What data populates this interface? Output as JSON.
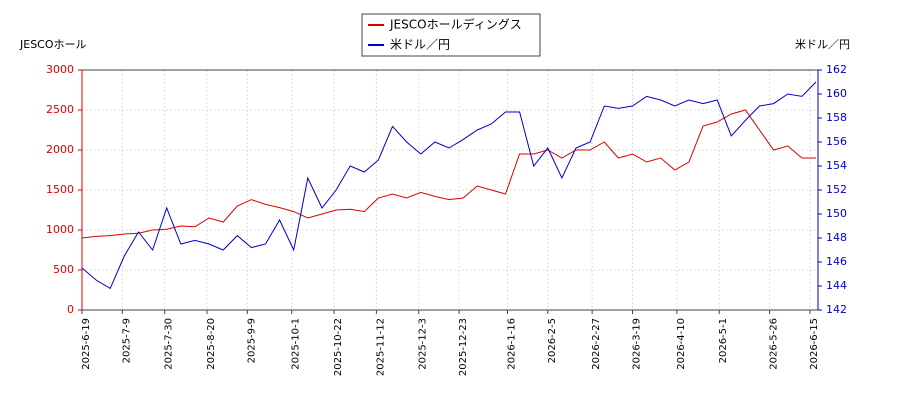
{
  "chart_data": {
    "type": "line",
    "y_label": "JESCOホール",
    "y2_label": "米ドル／円",
    "x": [
      "2025-6-19",
      "2025-6-26",
      "2025-7-3",
      "2025-7-10",
      "2025-7-17",
      "2025-7-24",
      "2025-7-31",
      "2025-8-7",
      "2025-8-14",
      "2025-8-21",
      "2025-8-28",
      "2025-9-4",
      "2025-9-11",
      "2025-9-18",
      "2025-9-25",
      "2025-10-2",
      "2025-10-9",
      "2025-10-16",
      "2025-10-23",
      "2025-10-30",
      "2025-11-6",
      "2025-11-13",
      "2025-11-20",
      "2025-11-27",
      "2025-12-4",
      "2025-12-11",
      "2025-12-18",
      "2025-12-25",
      "2026-1-1",
      "2026-1-8",
      "2026-1-15",
      "2026-1-22",
      "2026-1-29",
      "2026-2-5",
      "2026-2-12",
      "2026-2-19",
      "2026-2-26",
      "2026-3-5",
      "2026-3-12",
      "2026-3-19",
      "2026-3-26",
      "2026-4-2",
      "2026-4-9",
      "2026-4-16",
      "2026-4-23",
      "2026-4-30",
      "2026-5-7",
      "2026-5-14",
      "2026-5-21",
      "2026-5-28",
      "2026-6-4",
      "2026-6-11",
      "2026-6-18"
    ],
    "series": [
      {
        "name": "JESCOホールディングス",
        "color": "#dd0000",
        "axis": "y",
        "values": [
          900,
          920,
          930,
          950,
          960,
          1000,
          1010,
          1050,
          1040,
          1150,
          1100,
          1300,
          1380,
          1320,
          1280,
          1230,
          1150,
          1200,
          1250,
          1260,
          1230,
          1400,
          1450,
          1400,
          1470,
          1420,
          1380,
          1400,
          1550,
          1500,
          1450,
          1950,
          1950,
          2000,
          1900,
          2000,
          2000,
          2100,
          1900,
          1950,
          1850,
          1900,
          1750,
          1850,
          2300,
          2350,
          2450,
          2500,
          2250,
          2000,
          2050,
          1900,
          1900
        ]
      },
      {
        "name": "米ドル／円",
        "color": "#0000cc",
        "axis": "y2",
        "values": [
          145.5,
          144.5,
          143.8,
          146.5,
          148.5,
          147,
          150.5,
          147.5,
          147.8,
          147.5,
          147,
          148.2,
          147.2,
          147.5,
          149.5,
          147,
          153,
          150.5,
          152,
          154,
          153.5,
          154.5,
          157.3,
          156,
          155,
          156,
          155.5,
          156.2,
          157,
          157.5,
          158.5,
          158.5,
          154,
          155.5,
          153,
          155.5,
          156,
          159,
          158.8,
          159,
          159.8,
          159.5,
          159,
          159.5,
          159.2,
          159.5,
          156.5,
          157.8,
          159,
          159.2,
          160,
          159.8,
          161
        ]
      }
    ],
    "xlim": [
      "2025-6-19",
      "2026-6-19"
    ],
    "xticks": [
      "2025-6-19",
      "2025-7-9",
      "2025-7-30",
      "2025-8-20",
      "2025-9-9",
      "2025-10-1",
      "2025-10-22",
      "2025-11-12",
      "2025-12-3",
      "2025-12-23",
      "2026-1-16",
      "2026-2-5",
      "2026-2-27",
      "2026-3-19",
      "2026-4-10",
      "2026-5-1",
      "2026-5-26",
      "2026-6-15"
    ],
    "ylim": [
      0,
      3000
    ],
    "yticks": [
      0,
      500,
      1000,
      1500,
      2000,
      2500,
      3000
    ],
    "y2lim": [
      142,
      162
    ],
    "y2ticks": [
      142,
      144,
      146,
      148,
      150,
      152,
      154,
      156,
      158,
      160,
      162
    ],
    "grid": true
  }
}
